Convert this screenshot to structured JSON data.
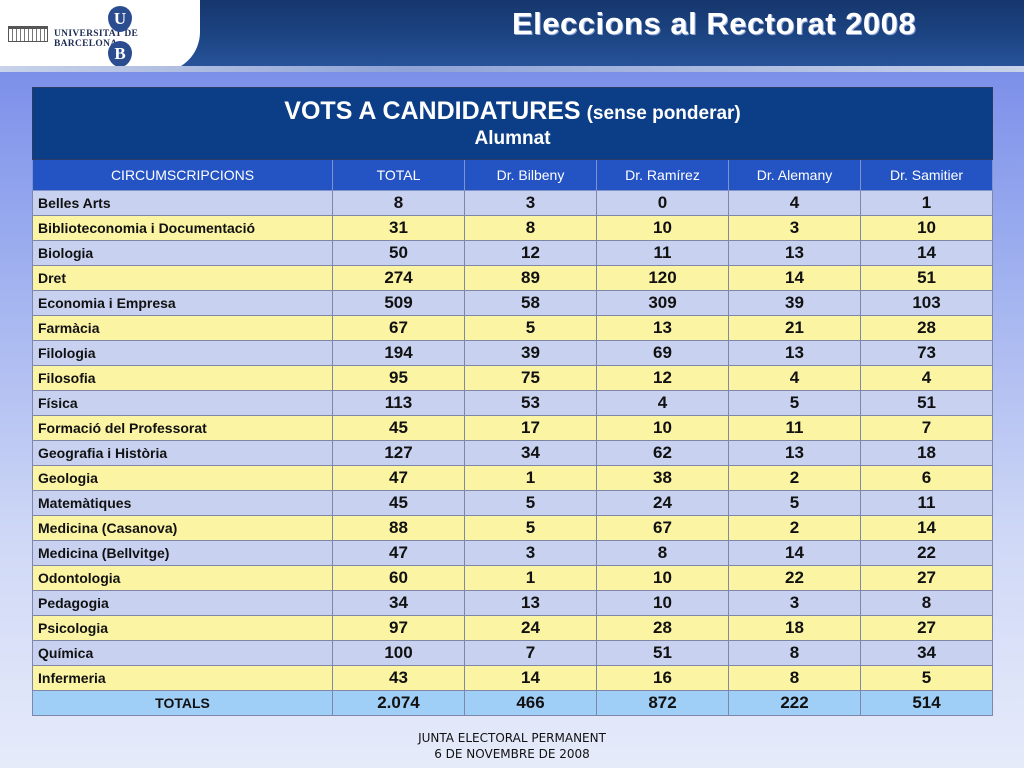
{
  "header": {
    "logo_text": "UNIVERSITAT DE BARCELONA",
    "logo_letter_top": "U",
    "logo_letter_bottom": "B",
    "title": "Eleccions al Rectorat 2008"
  },
  "table": {
    "title_main": "VOTS A CANDIDATURES",
    "title_sub": "(sense ponderar)",
    "title_line2": "Alumnat",
    "columns": [
      "CIRCUMSCRIPCIONS",
      "TOTAL",
      "Dr. Bilbeny",
      "Dr. Ramírez",
      "Dr. Alemany",
      "Dr. Samitier"
    ],
    "rows": [
      {
        "name": "Belles Arts",
        "values": [
          "8",
          "3",
          "0",
          "4",
          "1"
        ]
      },
      {
        "name": "Biblioteconomia i Documentació",
        "values": [
          "31",
          "8",
          "10",
          "3",
          "10"
        ]
      },
      {
        "name": "Biologia",
        "values": [
          "50",
          "12",
          "11",
          "13",
          "14"
        ]
      },
      {
        "name": "Dret",
        "values": [
          "274",
          "89",
          "120",
          "14",
          "51"
        ]
      },
      {
        "name": "Economia i Empresa",
        "values": [
          "509",
          "58",
          "309",
          "39",
          "103"
        ]
      },
      {
        "name": "Farmàcia",
        "values": [
          "67",
          "5",
          "13",
          "21",
          "28"
        ]
      },
      {
        "name": "Filologia",
        "values": [
          "194",
          "39",
          "69",
          "13",
          "73"
        ]
      },
      {
        "name": "Filosofia",
        "values": [
          "95",
          "75",
          "12",
          "4",
          "4"
        ]
      },
      {
        "name": "Física",
        "values": [
          "113",
          "53",
          "4",
          "5",
          "51"
        ]
      },
      {
        "name": "Formació del Professorat",
        "values": [
          "45",
          "17",
          "10",
          "11",
          "7"
        ]
      },
      {
        "name": "Geografia i Història",
        "values": [
          "127",
          "34",
          "62",
          "13",
          "18"
        ]
      },
      {
        "name": "Geologia",
        "values": [
          "47",
          "1",
          "38",
          "2",
          "6"
        ]
      },
      {
        "name": "Matemàtiques",
        "values": [
          "45",
          "5",
          "24",
          "5",
          "11"
        ]
      },
      {
        "name": "Medicina (Casanova)",
        "values": [
          "88",
          "5",
          "67",
          "2",
          "14"
        ]
      },
      {
        "name": "Medicina (Bellvitge)",
        "values": [
          "47",
          "3",
          "8",
          "14",
          "22"
        ]
      },
      {
        "name": "Odontologia",
        "values": [
          "60",
          "1",
          "10",
          "22",
          "27"
        ]
      },
      {
        "name": "Pedagogia",
        "values": [
          "34",
          "13",
          "10",
          "3",
          "8"
        ]
      },
      {
        "name": "Psicologia",
        "values": [
          "97",
          "24",
          "28",
          "18",
          "27"
        ]
      },
      {
        "name": "Química",
        "values": [
          "100",
          "7",
          "51",
          "8",
          "34"
        ]
      },
      {
        "name": "Infermeria",
        "values": [
          "43",
          "14",
          "16",
          "8",
          "5"
        ]
      }
    ],
    "totals": {
      "name": "TOTALS",
      "values": [
        "2.074",
        "466",
        "872",
        "222",
        "514"
      ]
    }
  },
  "footer": {
    "line1": "JUNTA ELECTORAL PERMANENT",
    "line2": "6 DE NOVEMBRE DE 2008"
  },
  "colors": {
    "title_bg": "#0b3e86",
    "header_bg": "#2453c4",
    "row_blue": "#c8d2f0",
    "row_yellow": "#fbf4a3",
    "totals_bg": "#9fcef6"
  }
}
